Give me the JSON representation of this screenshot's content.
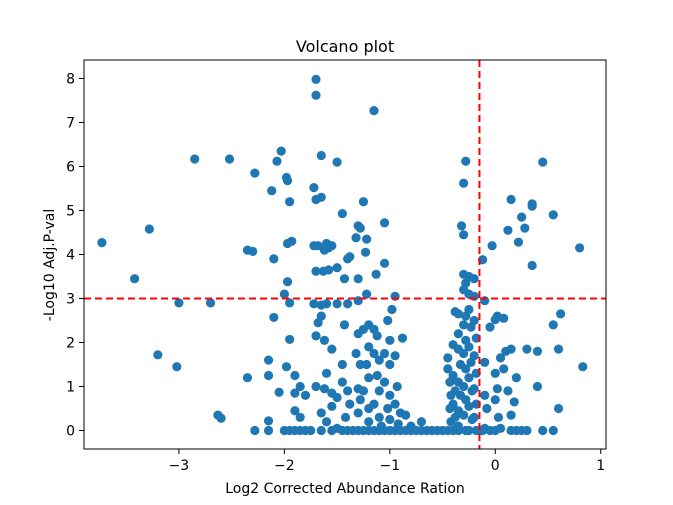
{
  "chart_data": {
    "type": "scatter",
    "title": "Volcano plot",
    "xlabel": "Log2 Corrected Abundance Ration",
    "ylabel": "-Log10 Adj.P-val",
    "xlim": [
      -3.9,
      1.05
    ],
    "ylim": [
      -0.42,
      8.42
    ],
    "xticks": [
      -3,
      -2,
      -1,
      0,
      1
    ],
    "yticks": [
      0,
      1,
      2,
      3,
      4,
      5,
      6,
      7,
      8
    ],
    "xtick_labels": [
      "−3",
      "−2",
      "−1",
      "0",
      "1"
    ],
    "ytick_labels": [
      "0",
      "1",
      "2",
      "3",
      "4",
      "5",
      "6",
      "7",
      "8"
    ],
    "point_color": "#1f77b4",
    "threshold_color": "#ff0000",
    "threshold_y": 3.0,
    "threshold_x": -0.15,
    "grid": false,
    "legend": "none",
    "series": [
      {
        "points": [
          [
            -3.73,
            4.27
          ],
          [
            -3.42,
            3.45
          ],
          [
            -3.28,
            4.58
          ],
          [
            -3.0,
            2.9
          ],
          [
            -3.2,
            1.72
          ],
          [
            -3.02,
            1.45
          ],
          [
            -2.85,
            6.17
          ],
          [
            -2.52,
            6.17
          ],
          [
            -2.7,
            2.9
          ],
          [
            -2.63,
            0.35
          ],
          [
            -2.6,
            0.28
          ],
          [
            -2.35,
            4.1
          ],
          [
            -2.3,
            4.07
          ],
          [
            -2.35,
            1.2
          ],
          [
            -2.28,
            5.85
          ],
          [
            -2.28,
            0.0
          ],
          [
            -2.15,
            0.22
          ],
          [
            -2.15,
            0.0
          ],
          [
            -2.15,
            1.25
          ],
          [
            -2.15,
            1.6
          ],
          [
            -2.12,
            5.45
          ],
          [
            -2.1,
            2.57
          ],
          [
            -2.1,
            3.9
          ],
          [
            -2.07,
            6.12
          ],
          [
            -2.03,
            6.35
          ],
          [
            -1.98,
            5.75
          ],
          [
            -1.97,
            5.68
          ],
          [
            -1.95,
            5.2
          ],
          [
            -1.97,
            4.25
          ],
          [
            -1.93,
            4.3
          ],
          [
            -1.97,
            3.38
          ],
          [
            -2.0,
            3.1
          ],
          [
            -1.95,
            2.9
          ],
          [
            -1.95,
            2.07
          ],
          [
            -1.98,
            1.45
          ],
          [
            -2.05,
            0.87
          ],
          [
            -1.9,
            0.45
          ],
          [
            -1.9,
            0.85
          ],
          [
            -1.9,
            1.25
          ],
          [
            -1.85,
            1.0
          ],
          [
            -1.8,
            0.8
          ],
          [
            -1.85,
            0.3
          ],
          [
            -2.0,
            0.0
          ],
          [
            -1.9,
            0.0
          ],
          [
            -1.75,
            0.0
          ],
          [
            -1.7,
            7.98
          ],
          [
            -1.7,
            7.62
          ],
          [
            -1.72,
            5.52
          ],
          [
            -1.7,
            5.25
          ],
          [
            -1.65,
            5.3
          ],
          [
            -1.65,
            6.25
          ],
          [
            -1.72,
            4.2
          ],
          [
            -1.68,
            4.2
          ],
          [
            -1.6,
            4.25
          ],
          [
            -1.58,
            4.15
          ],
          [
            -1.62,
            4.1
          ],
          [
            -1.55,
            4.2
          ],
          [
            -1.7,
            3.62
          ],
          [
            -1.63,
            3.62
          ],
          [
            -1.58,
            3.65
          ],
          [
            -1.5,
            3.7
          ],
          [
            -1.72,
            2.88
          ],
          [
            -1.65,
            2.85
          ],
          [
            -1.6,
            2.88
          ],
          [
            -1.5,
            2.88
          ],
          [
            -1.68,
            2.45
          ],
          [
            -1.65,
            2.6
          ],
          [
            -1.7,
            2.15
          ],
          [
            -1.62,
            2.05
          ],
          [
            -1.55,
            1.85
          ],
          [
            -1.6,
            1.3
          ],
          [
            -1.7,
            1.0
          ],
          [
            -1.62,
            0.95
          ],
          [
            -1.55,
            0.85
          ],
          [
            -1.5,
            0.75
          ],
          [
            -1.55,
            0.55
          ],
          [
            -1.65,
            0.4
          ],
          [
            -1.6,
            0.2
          ],
          [
            -1.55,
            0.0
          ],
          [
            -1.65,
            0.0
          ],
          [
            -1.5,
            0.05
          ],
          [
            -1.5,
            6.1
          ],
          [
            -1.45,
            4.93
          ],
          [
            -1.43,
            3.45
          ],
          [
            -1.4,
            3.9
          ],
          [
            -1.38,
            3.95
          ],
          [
            -1.4,
            2.88
          ],
          [
            -1.43,
            2.4
          ],
          [
            -1.45,
            1.5
          ],
          [
            -1.45,
            1.1
          ],
          [
            -1.4,
            0.9
          ],
          [
            -1.38,
            0.6
          ],
          [
            -1.42,
            0.3
          ],
          [
            -1.35,
            0.0
          ],
          [
            -1.45,
            0.0
          ],
          [
            -1.32,
            4.38
          ],
          [
            -1.3,
            4.65
          ],
          [
            -1.28,
            4.6
          ],
          [
            -1.3,
            3.45
          ],
          [
            -1.3,
            2.95
          ],
          [
            -1.3,
            2.2
          ],
          [
            -1.32,
            1.75
          ],
          [
            -1.28,
            1.5
          ],
          [
            -1.3,
            0.95
          ],
          [
            -1.28,
            0.7
          ],
          [
            -1.3,
            0.4
          ],
          [
            -1.3,
            0.0
          ],
          [
            -1.25,
            5.2
          ],
          [
            -1.22,
            4.35
          ],
          [
            -1.23,
            4.05
          ],
          [
            -1.22,
            3.1
          ],
          [
            -1.2,
            2.4
          ],
          [
            -1.25,
            2.3
          ],
          [
            -1.2,
            1.9
          ],
          [
            -1.22,
            1.5
          ],
          [
            -1.2,
            1.2
          ],
          [
            -1.25,
            0.9
          ],
          [
            -1.2,
            0.5
          ],
          [
            -1.2,
            0.2
          ],
          [
            -1.2,
            0.0
          ],
          [
            -1.15,
            0.0
          ],
          [
            -1.15,
            7.27
          ],
          [
            -1.13,
            3.55
          ],
          [
            -1.15,
            2.3
          ],
          [
            -1.12,
            2.15
          ],
          [
            -1.15,
            1.75
          ],
          [
            -1.1,
            1.6
          ],
          [
            -1.12,
            1.25
          ],
          [
            -1.1,
            0.9
          ],
          [
            -1.15,
            0.6
          ],
          [
            -1.1,
            0.3
          ],
          [
            -1.08,
            0.1
          ],
          [
            -1.1,
            0.0
          ],
          [
            -1.05,
            4.72
          ],
          [
            -1.05,
            3.8
          ],
          [
            -1.02,
            2.5
          ],
          [
            -1.0,
            2.05
          ],
          [
            -1.05,
            1.75
          ],
          [
            -1.0,
            1.5
          ],
          [
            -1.05,
            1.1
          ],
          [
            -1.0,
            0.8
          ],
          [
            -1.02,
            0.5
          ],
          [
            -1.0,
            0.25
          ],
          [
            -1.0,
            0.0
          ],
          [
            -0.98,
            2.75
          ],
          [
            -0.95,
            3.05
          ],
          [
            -0.95,
            1.7
          ],
          [
            -0.93,
            1.0
          ],
          [
            -0.95,
            0.6
          ],
          [
            -0.9,
            0.4
          ],
          [
            -0.92,
            0.15
          ],
          [
            -0.9,
            0.0
          ],
          [
            -0.88,
            2.1
          ],
          [
            -0.85,
            0.35
          ],
          [
            -0.85,
            0.0
          ],
          [
            -0.8,
            0.1
          ],
          [
            -0.8,
            0.0
          ],
          [
            -0.75,
            0.0
          ],
          [
            -0.7,
            0.0
          ],
          [
            -0.7,
            0.2
          ],
          [
            -0.65,
            0.0
          ],
          [
            -0.6,
            0.0
          ],
          [
            -1.8,
            0.0
          ],
          [
            -1.85,
            0.0
          ],
          [
            -1.95,
            0.0
          ],
          [
            -1.4,
            0.0
          ],
          [
            -1.25,
            0.0
          ],
          [
            -1.05,
            0.0
          ],
          [
            -0.95,
            0.0
          ],
          [
            -0.55,
            0.0
          ],
          [
            -0.5,
            0.0
          ],
          [
            -0.45,
            1.65
          ],
          [
            -0.45,
            1.4
          ],
          [
            -0.43,
            1.1
          ],
          [
            -0.42,
            0.8
          ],
          [
            -0.43,
            0.5
          ],
          [
            -0.42,
            0.2
          ],
          [
            -0.45,
            0.0
          ],
          [
            -0.4,
            1.95
          ],
          [
            -0.38,
            2.7
          ],
          [
            -0.4,
            1.25
          ],
          [
            -0.38,
            0.9
          ],
          [
            -0.4,
            0.6
          ],
          [
            -0.38,
            0.3
          ],
          [
            -0.4,
            0.0
          ],
          [
            -0.35,
            2.65
          ],
          [
            -0.35,
            2.2
          ],
          [
            -0.35,
            1.85
          ],
          [
            -0.33,
            1.5
          ],
          [
            -0.35,
            1.1
          ],
          [
            -0.33,
            0.8
          ],
          [
            -0.35,
            0.45
          ],
          [
            -0.35,
            0.1
          ],
          [
            -0.35,
            0.0
          ],
          [
            -0.32,
            4.65
          ],
          [
            -0.3,
            5.62
          ],
          [
            -0.3,
            4.45
          ],
          [
            -0.28,
            6.12
          ],
          [
            -0.3,
            3.55
          ],
          [
            -0.28,
            3.35
          ],
          [
            -0.3,
            3.2
          ],
          [
            -0.28,
            2.6
          ],
          [
            -0.3,
            2.4
          ],
          [
            -0.28,
            2.05
          ],
          [
            -0.3,
            1.75
          ],
          [
            -0.28,
            1.4
          ],
          [
            -0.3,
            1.0
          ],
          [
            -0.28,
            0.7
          ],
          [
            -0.3,
            0.35
          ],
          [
            -0.28,
            0.0
          ],
          [
            -0.25,
            3.5
          ],
          [
            -0.25,
            3.1
          ],
          [
            -0.25,
            2.75
          ],
          [
            -0.23,
            2.35
          ],
          [
            -0.25,
            1.9
          ],
          [
            -0.23,
            1.55
          ],
          [
            -0.25,
            1.2
          ],
          [
            -0.22,
            0.9
          ],
          [
            -0.25,
            0.55
          ],
          [
            -0.22,
            0.25
          ],
          [
            -0.25,
            0.0
          ],
          [
            -0.2,
            3.45
          ],
          [
            -0.2,
            3.05
          ],
          [
            -0.2,
            2.5
          ],
          [
            -0.18,
            2.1
          ],
          [
            -0.2,
            1.7
          ],
          [
            -0.18,
            1.3
          ],
          [
            -0.2,
            0.95
          ],
          [
            -0.18,
            0.6
          ],
          [
            -0.2,
            0.3
          ],
          [
            -0.18,
            0.0
          ],
          [
            -0.12,
            3.88
          ],
          [
            -0.1,
            2.95
          ],
          [
            -0.1,
            1.55
          ],
          [
            -0.1,
            0.8
          ],
          [
            -0.08,
            0.5
          ],
          [
            -0.1,
            0.05
          ],
          [
            -0.05,
            0.0
          ],
          [
            -0.05,
            2.35
          ],
          [
            -0.03,
            4.2
          ],
          [
            0.02,
            2.6
          ],
          [
            0.0,
            2.52
          ],
          [
            0.0,
            1.3
          ],
          [
            0.02,
            0.95
          ],
          [
            0.0,
            0.7
          ],
          [
            0.03,
            0.3
          ],
          [
            0.0,
            0.0
          ],
          [
            0.05,
            0.05
          ],
          [
            0.05,
            1.65
          ],
          [
            0.08,
            1.4
          ],
          [
            0.1,
            1.8
          ],
          [
            0.08,
            2.55
          ],
          [
            0.12,
            4.55
          ],
          [
            0.12,
            0.9
          ],
          [
            0.15,
            5.25
          ],
          [
            0.15,
            1.85
          ],
          [
            0.15,
            0.35
          ],
          [
            0.15,
            0.0
          ],
          [
            0.18,
            0.65
          ],
          [
            0.2,
            1.2
          ],
          [
            0.22,
            4.28
          ],
          [
            0.25,
            4.85
          ],
          [
            0.28,
            4.6
          ],
          [
            0.3,
            1.85
          ],
          [
            0.3,
            0.0
          ],
          [
            0.35,
            5.15
          ],
          [
            0.35,
            5.1
          ],
          [
            0.35,
            3.75
          ],
          [
            0.4,
            1.8
          ],
          [
            0.4,
            1.0
          ],
          [
            0.45,
            6.1
          ],
          [
            0.45,
            0.0
          ],
          [
            0.55,
            4.9
          ],
          [
            0.55,
            2.4
          ],
          [
            0.55,
            0.0
          ],
          [
            0.6,
            1.85
          ],
          [
            0.6,
            0.5
          ],
          [
            0.62,
            2.65
          ],
          [
            0.8,
            4.15
          ],
          [
            0.83,
            1.45
          ],
          [
            0.25,
            0.0
          ],
          [
            0.2,
            0.0
          ],
          [
            -0.15,
            0.0
          ],
          [
            -0.12,
            0.0
          ]
        ]
      }
    ]
  }
}
